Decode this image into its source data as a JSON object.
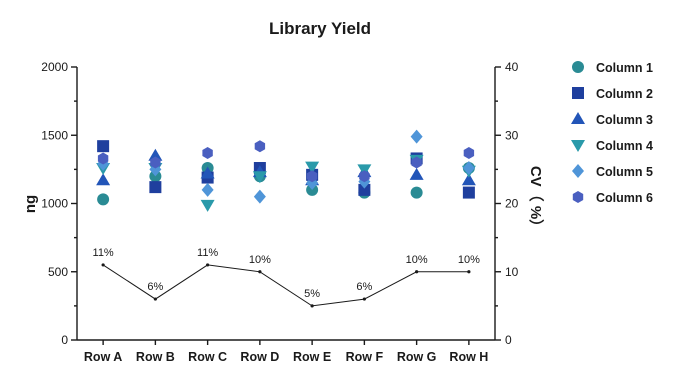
{
  "chart_data": {
    "type": "scatter",
    "title": "Library Yield",
    "ylabel": "ng",
    "y2label": "CV（ %）",
    "categories": [
      "Row A",
      "Row B",
      "Row C",
      "Row D",
      "Row E",
      "Row F",
      "Row G",
      "Row H"
    ],
    "ylim": [
      0,
      2000
    ],
    "yticks": [
      "0",
      "500",
      "1000",
      "1500",
      "2000"
    ],
    "y2lim": [
      0,
      40
    ],
    "y2ticks": [
      "0",
      "10",
      "20",
      "30",
      "40"
    ],
    "legend_position": "right",
    "series": [
      {
        "name": "Column 1",
        "marker": "circle",
        "color": "#2a8b94",
        "values": [
          1030,
          1200,
          1260,
          1200,
          1100,
          1080,
          1080,
          1260
        ]
      },
      {
        "name": "Column 2",
        "marker": "square",
        "color": "#1f3f9e",
        "values": [
          1420,
          1120,
          1190,
          1260,
          1210,
          1100,
          1330,
          1080
        ]
      },
      {
        "name": "Column 3",
        "marker": "triangle-up",
        "color": "#2255b8",
        "values": [
          1170,
          1350,
          1220,
          1230,
          1170,
          1230,
          1210,
          1170
        ]
      },
      {
        "name": "Column 4",
        "marker": "triangle-down",
        "color": "#2a9aaa",
        "values": [
          1260,
          1260,
          990,
          1200,
          1270,
          1250,
          1320,
          1240
        ]
      },
      {
        "name": "Column 5",
        "marker": "diamond",
        "color": "#4f95d8",
        "values": [
          1290,
          1250,
          1100,
          1050,
          1150,
          1160,
          1490,
          1260
        ]
      },
      {
        "name": "Column 6",
        "marker": "hexagon",
        "color": "#4a5fc0",
        "values": [
          1330,
          1300,
          1370,
          1420,
          1200,
          1200,
          1300,
          1370
        ]
      }
    ],
    "cv_series": {
      "axis": "right",
      "values": [
        11,
        6,
        11,
        10,
        5,
        6,
        10,
        10
      ],
      "labels": [
        "11%",
        "6%",
        "11%",
        "10%",
        "5%",
        "6%",
        "10%",
        "10%"
      ]
    }
  }
}
